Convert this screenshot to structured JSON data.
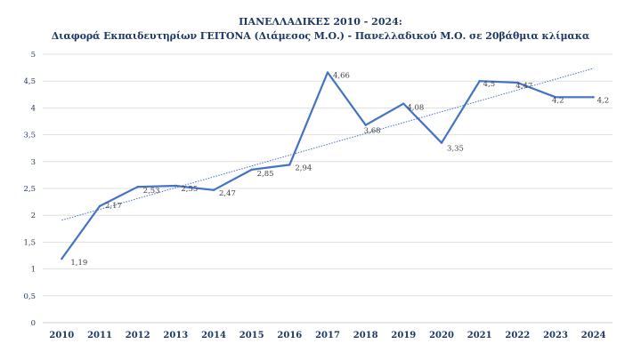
{
  "chart_data": {
    "type": "line",
    "title": "ΠΑΝΕΛΛΑΔΙΚΕΣ 2010 - 2024:",
    "subtitle": "Διαφορά Εκπαιδευτηρίων ΓΕΙΤΟΝΑ (Διάμεσος Μ.Ο.) - Πανελλαδικού Μ.Ο. σε 20βάθμια κλίμακα",
    "categories": [
      "2010",
      "2011",
      "2012",
      "2013",
      "2014",
      "2015",
      "2016",
      "2017",
      "2018",
      "2019",
      "2020",
      "2021",
      "2022",
      "2023",
      "2024"
    ],
    "values": [
      1.19,
      2.17,
      2.53,
      2.55,
      2.47,
      2.85,
      2.94,
      4.66,
      3.68,
      4.08,
      3.35,
      4.5,
      4.47,
      4.2,
      4.2
    ],
    "data_labels": [
      "1,19",
      "2,17",
      "2,53",
      "2,55",
      "2,47",
      "2,85",
      "2,94",
      "4,66",
      "3,68",
      "4,08",
      "3,35",
      "4,5",
      "4,47",
      "4,2",
      "4,2"
    ],
    "y_ticks": [
      0,
      0.5,
      1,
      1.5,
      2,
      2.5,
      3,
      3.5,
      4,
      4.5,
      5
    ],
    "y_tick_labels": [
      "0",
      "0,5",
      "1",
      "1,5",
      "2",
      "2,5",
      "3",
      "3,5",
      "4",
      "4,5",
      "5"
    ],
    "ylim": [
      0,
      5
    ],
    "xlabel": "",
    "ylabel": "",
    "trendline": "linear",
    "grid": true,
    "legend": "none",
    "colors": {
      "series": "#4472c4",
      "trend": "#4472c4",
      "title": "#1f3864",
      "axis_text": "#1f3864",
      "label_text": "#404040",
      "grid": "#d9d9d9"
    }
  }
}
